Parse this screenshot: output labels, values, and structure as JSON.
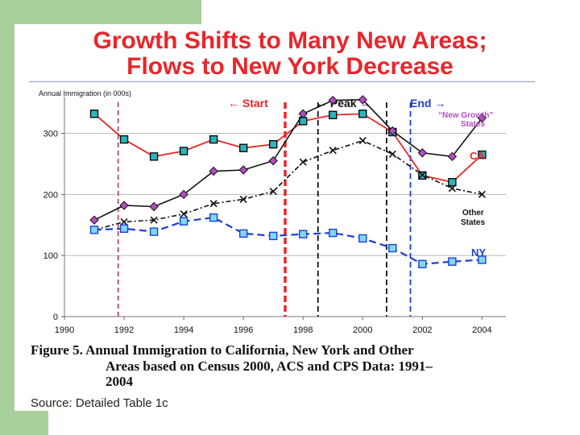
{
  "slide": {
    "title_line1": "Growth Shifts to Many New Areas;",
    "title_line2": "Flows to New York Decrease",
    "figure_caption_line1": "Figure 5.  Annual Immigration to California, New York and Other",
    "figure_caption_line2": "Areas based on Census 2000, ACS and CPS Data:  1991–",
    "figure_caption_line3": "2004",
    "source": "Source:  Detailed Table 1c"
  },
  "chart_data": {
    "type": "line",
    "ylabel": "Annual Immigration (in 000s)",
    "xlim": [
      1990,
      2004.8
    ],
    "ylim": [
      0,
      360
    ],
    "xticks": [
      1990,
      1992,
      1994,
      1996,
      1998,
      2000,
      2002,
      2004
    ],
    "yticks": [
      0,
      100,
      200,
      300
    ],
    "xtick_labels": [
      "1990",
      "1992",
      "1994",
      "1996",
      "1998",
      "2000",
      "2002",
      "2004"
    ],
    "ytick_labels": [
      "0",
      "100",
      "200",
      "300"
    ],
    "series": [
      {
        "name": "CA",
        "color": "#e8262a",
        "marker": "square-teal",
        "x": [
          1991,
          1992,
          1993,
          1994,
          1995,
          1996,
          1997,
          1998,
          1999,
          2000,
          2001,
          2002,
          2003,
          2004
        ],
        "values": [
          332,
          290,
          262,
          271,
          290,
          276,
          282,
          320,
          330,
          332,
          302,
          231,
          220,
          265
        ]
      },
      {
        "name": "“New Growth” States",
        "color": "#111111",
        "marker": "diamond-purple",
        "x": [
          1991,
          1992,
          1993,
          1994,
          1995,
          1996,
          1997,
          1998,
          1999,
          2000,
          2001,
          2002,
          2003,
          2004
        ],
        "values": [
          158,
          182,
          180,
          200,
          238,
          240,
          255,
          332,
          354,
          355,
          304,
          268,
          262,
          325
        ]
      },
      {
        "name": "Other States",
        "color": "#111111",
        "marker": "x",
        "x": [
          1991,
          1992,
          1993,
          1994,
          1995,
          1996,
          1997,
          1998,
          1999,
          2000,
          2001,
          2002,
          2003,
          2004
        ],
        "values": [
          142,
          155,
          158,
          168,
          185,
          192,
          205,
          253,
          272,
          288,
          266,
          232,
          210,
          200
        ]
      },
      {
        "name": "NY",
        "color": "#1f3fd6",
        "marker": "square-lightblue",
        "x": [
          1991,
          1992,
          1993,
          1994,
          1995,
          1996,
          1997,
          1998,
          1999,
          2000,
          2001,
          2002,
          2003,
          2004
        ],
        "values": [
          142,
          144,
          139,
          156,
          162,
          136,
          132,
          135,
          137,
          128,
          112,
          86,
          90,
          93
        ]
      }
    ],
    "annotations": {
      "start_label": "Start",
      "peak_label": "Peak",
      "end_label": "End",
      "start_arrow": "←",
      "peak_arrow_left": "←",
      "peak_arrow_right": "→",
      "end_arrow": "→",
      "vlines": [
        {
          "x": 1991.8,
          "color": "#c8282a",
          "style": "dashed-thin"
        },
        {
          "x": 1997.4,
          "color": "#e8262a",
          "style": "dashed-thick"
        },
        {
          "x": 1998.5,
          "color": "#111111",
          "style": "dashed"
        },
        {
          "x": 2000.8,
          "color": "#111111",
          "style": "dashed"
        },
        {
          "x": 2001.6,
          "color": "#1f3fd6",
          "style": "dashed"
        }
      ],
      "series_labels": {
        "new_growth_line1": "“New Growth”",
        "new_growth_line2": "States",
        "ca": "CA",
        "other_line1": "Other",
        "other_line2": "States",
        "ny": "NY"
      }
    }
  }
}
